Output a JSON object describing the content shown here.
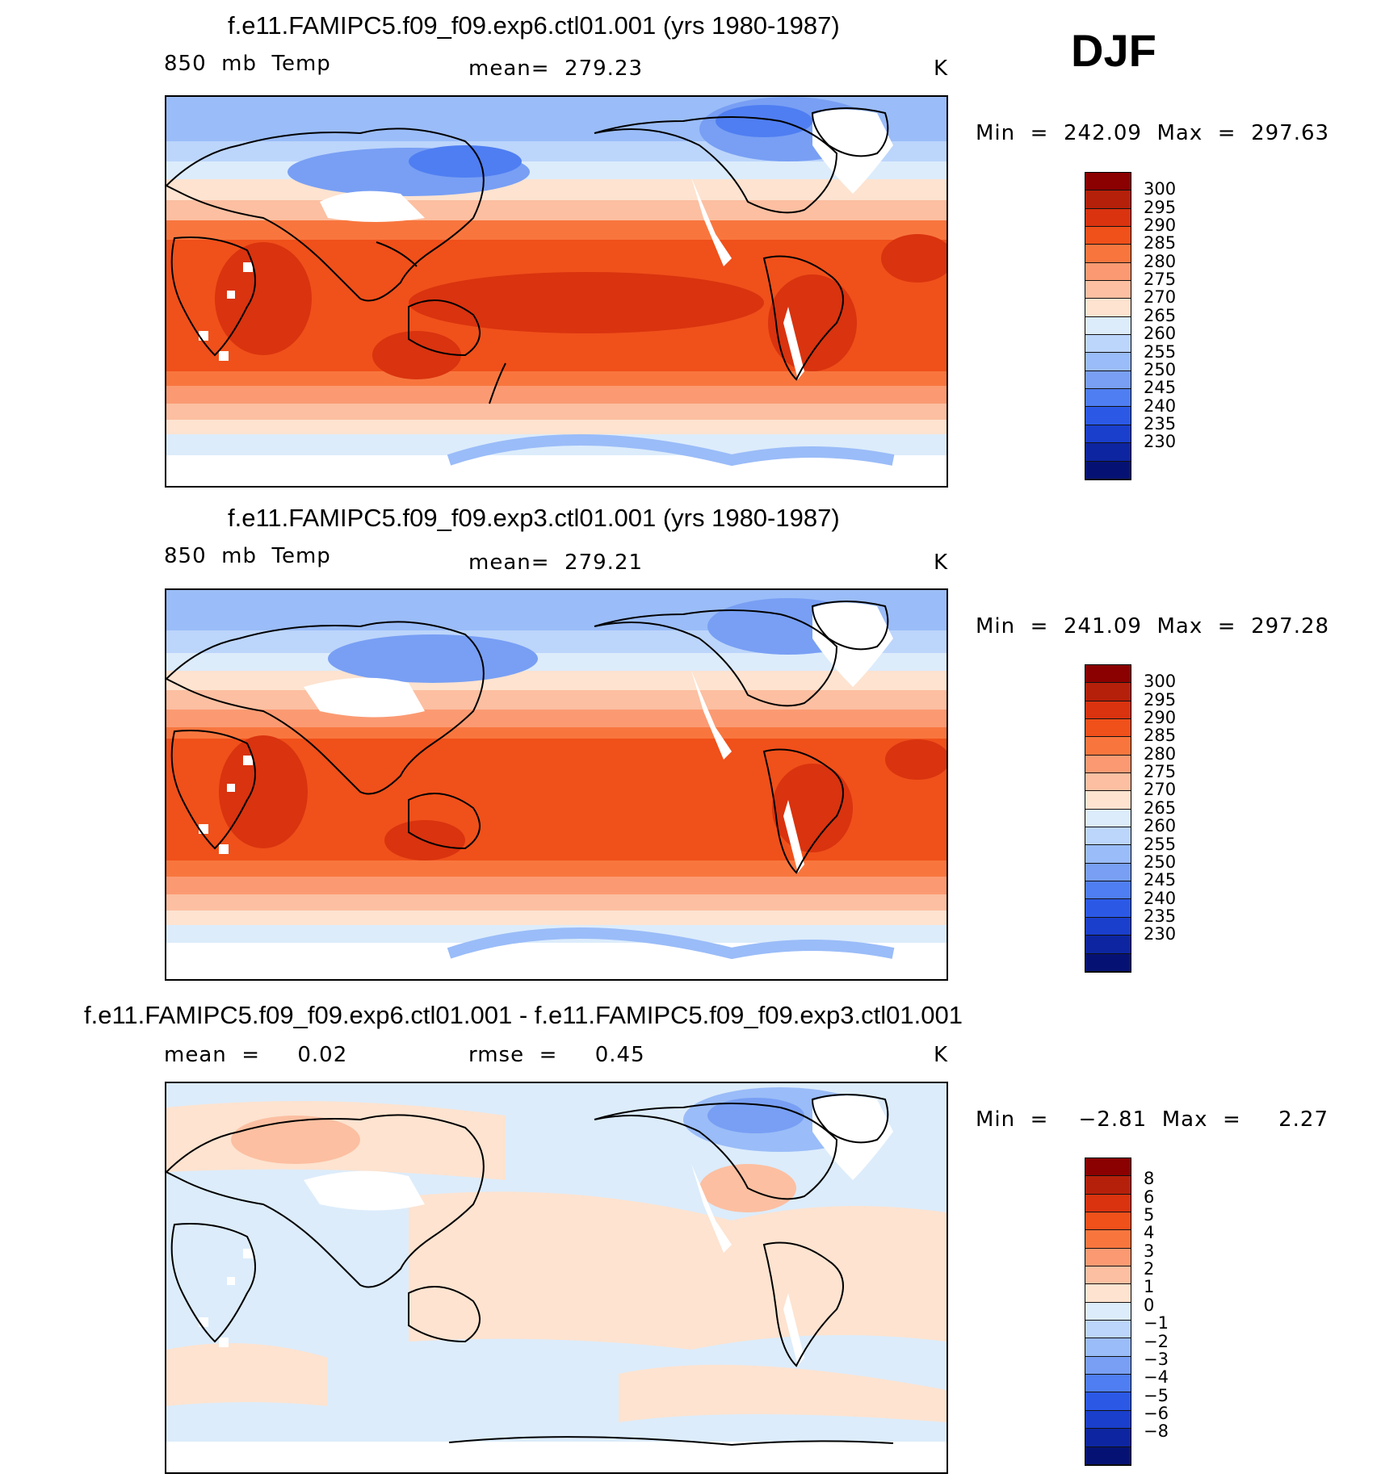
{
  "season": "DJF",
  "panels": [
    {
      "title": "f.e11.FAMIPC5.f09_f09.exp6.ctl01.001 (yrs 1980-1987)",
      "left_label": "850  mb  Temp",
      "center_label": "mean=  279.23",
      "units": "K",
      "minmax": "Min  =  242.09  Max  =  297.63",
      "colorbar_labels": [
        "300",
        "295",
        "290",
        "285",
        "280",
        "275",
        "270",
        "265",
        "260",
        "255",
        "250",
        "245",
        "240",
        "235",
        "230"
      ],
      "colorbar_colors": [
        "#8b0000",
        "#b5200a",
        "#d9330f",
        "#f0501a",
        "#f8763e",
        "#fb9a72",
        "#fcbfa1",
        "#fde3d0",
        "#dcecfb",
        "#bcd5fb",
        "#9abcf8",
        "#789ff4",
        "#4f7ef2",
        "#2b59e6",
        "#1a3fcc",
        "#0d25a0",
        "#061273"
      ]
    },
    {
      "title": "f.e11.FAMIPC5.f09_f09.exp3.ctl01.001 (yrs 1980-1987)",
      "left_label": "850  mb  Temp",
      "center_label": "mean=  279.21",
      "units": "K",
      "minmax": "Min  =  241.09  Max  =  297.28",
      "colorbar_labels": [
        "300",
        "295",
        "290",
        "285",
        "280",
        "275",
        "270",
        "265",
        "260",
        "255",
        "250",
        "245",
        "240",
        "235",
        "230"
      ],
      "colorbar_colors": [
        "#8b0000",
        "#b5200a",
        "#d9330f",
        "#f0501a",
        "#f8763e",
        "#fb9a72",
        "#fcbfa1",
        "#fde3d0",
        "#dcecfb",
        "#bcd5fb",
        "#9abcf8",
        "#789ff4",
        "#4f7ef2",
        "#2b59e6",
        "#1a3fcc",
        "#0d25a0",
        "#061273"
      ]
    },
    {
      "title": "f.e11.FAMIPC5.f09_f09.exp6.ctl01.001 - f.e11.FAMIPC5.f09_f09.exp3.ctl01.001",
      "left_label": "mean  =     0.02",
      "center_label": "rmse  =     0.45",
      "units": "K",
      "minmax": "Min  =    −2.81  Max  =     2.27",
      "colorbar_labels": [
        "8",
        "6",
        "5",
        "4",
        "3",
        "2",
        "1",
        "0",
        "−1",
        "−2",
        "−3",
        "−4",
        "−5",
        "−6",
        "−8"
      ],
      "colorbar_colors": [
        "#8b0000",
        "#b5200a",
        "#d9330f",
        "#f0501a",
        "#f8763e",
        "#fb9a72",
        "#fcbfa1",
        "#fde3d0",
        "#dcecfb",
        "#bcd5fb",
        "#9abcf8",
        "#789ff4",
        "#4f7ef2",
        "#2b59e6",
        "#1a3fcc",
        "#0d25a0",
        "#061273"
      ]
    }
  ]
}
